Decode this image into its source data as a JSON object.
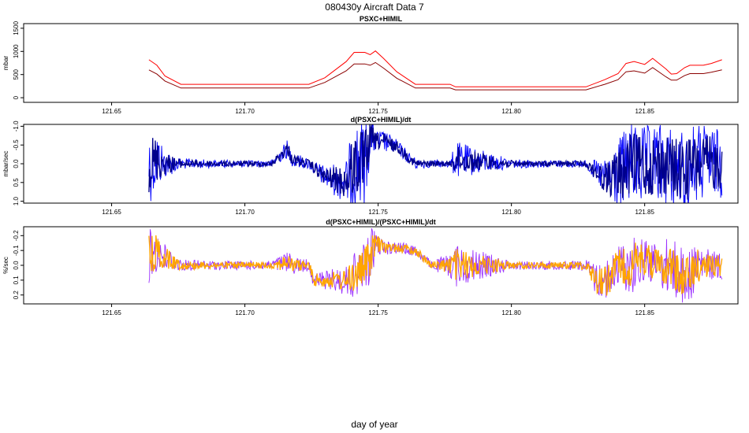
{
  "title": "080430y   Aircraft Data 7",
  "xlabel": "day of year",
  "chart_data": [
    {
      "type": "line",
      "title": "PSXC+HIMIL",
      "ylabel": "mbar",
      "xlim": [
        121.617,
        121.885
      ],
      "ylim": [
        -100,
        1600
      ],
      "xticks": [
        121.65,
        121.7,
        121.75,
        121.8,
        121.85
      ],
      "xtick_labels": [
        "121.65",
        "121.70",
        "121.75",
        "121.80",
        "121.85"
      ],
      "yticks": [
        0,
        500,
        1000,
        1500
      ],
      "ytick_labels": [
        "0",
        "500",
        "1000",
        "1500"
      ],
      "colors": [
        "#ff0000",
        "#8b0000"
      ],
      "series": [
        {
          "x": [
            121.664,
            121.667,
            121.67,
            121.676,
            121.69,
            121.7,
            121.71,
            121.724,
            121.73,
            121.738,
            121.741,
            121.745,
            121.747,
            121.749,
            121.752,
            121.757,
            121.764,
            121.77,
            121.777,
            121.779,
            121.8,
            121.81,
            121.82,
            121.828,
            121.835,
            121.84,
            121.843,
            121.846,
            121.85,
            121.853,
            121.858,
            121.86,
            121.862,
            121.865,
            121.867,
            121.872,
            121.875,
            121.879
          ],
          "y": [
            820,
            700,
            470,
            290,
            290,
            290,
            290,
            290,
            430,
            780,
            980,
            980,
            930,
            1010,
            850,
            560,
            290,
            290,
            290,
            235,
            235,
            235,
            235,
            235,
            390,
            520,
            740,
            780,
            720,
            850,
            620,
            510,
            520,
            650,
            700,
            700,
            740,
            820
          ]
        },
        {
          "x": [
            121.664,
            121.667,
            121.67,
            121.676,
            121.69,
            121.7,
            121.71,
            121.724,
            121.73,
            121.738,
            121.741,
            121.745,
            121.747,
            121.749,
            121.752,
            121.757,
            121.764,
            121.77,
            121.777,
            121.779,
            121.8,
            121.81,
            121.82,
            121.828,
            121.835,
            121.84,
            121.843,
            121.846,
            121.85,
            121.853,
            121.858,
            121.86,
            121.862,
            121.865,
            121.867,
            121.872,
            121.875,
            121.879
          ],
          "y": [
            600,
            510,
            360,
            210,
            210,
            210,
            210,
            210,
            330,
            580,
            730,
            730,
            700,
            760,
            640,
            420,
            210,
            210,
            210,
            170,
            170,
            170,
            170,
            170,
            290,
            390,
            560,
            580,
            530,
            650,
            450,
            380,
            380,
            480,
            520,
            520,
            550,
            600
          ]
        }
      ]
    },
    {
      "type": "line",
      "title": "d(PSXC+HIMIL)/dt",
      "ylabel": "mbar/sec",
      "xlim": [
        121.617,
        121.885
      ],
      "ylim": [
        1.05,
        -1.05
      ],
      "xticks": [
        121.65,
        121.7,
        121.75,
        121.8,
        121.85
      ],
      "xtick_labels": [
        "121.65",
        "121.70",
        "121.75",
        "121.80",
        "121.85"
      ],
      "yticks": [
        -1.0,
        -0.5,
        0.0,
        0.5,
        1.0
      ],
      "ytick_labels": [
        "-1.0",
        "-0.5",
        "0.0",
        "0.5",
        "1.0"
      ],
      "colors": [
        "#0000ff",
        "#00008b"
      ],
      "envelope": {
        "x": [
          121.664,
          121.667,
          121.67,
          121.676,
          121.69,
          121.7,
          121.71,
          121.716,
          121.718,
          121.724,
          121.73,
          121.738,
          121.741,
          121.745,
          121.747,
          121.749,
          121.752,
          121.757,
          121.764,
          121.77,
          121.777,
          121.779,
          121.8,
          121.81,
          121.82,
          121.828,
          121.835,
          121.84,
          121.845,
          121.85,
          121.855,
          121.86,
          121.865,
          121.87,
          121.875,
          121.879
        ],
        "center": [
          0.0,
          -0.1,
          0.0,
          0.0,
          0.0,
          0.0,
          0.0,
          -0.4,
          -0.1,
          0.0,
          0.35,
          0.5,
          0.0,
          0.0,
          -0.7,
          -0.6,
          -0.6,
          -0.45,
          0.0,
          0.0,
          0.0,
          -0.1,
          0.0,
          0.0,
          0.0,
          0.0,
          0.4,
          0.3,
          0.0,
          0.1,
          0.0,
          0.1,
          0.2,
          0.0,
          0.0,
          0.0
        ],
        "amplitude": [
          1.1,
          0.8,
          0.4,
          0.15,
          0.1,
          0.1,
          0.1,
          0.25,
          0.2,
          0.15,
          0.3,
          0.6,
          1.2,
          1.2,
          0.6,
          0.3,
          0.3,
          0.2,
          0.15,
          0.1,
          0.1,
          0.5,
          0.12,
          0.1,
          0.1,
          0.1,
          0.5,
          1.0,
          1.1,
          1.1,
          1.1,
          1.1,
          1.1,
          1.1,
          1.0,
          0.9
        ]
      }
    },
    {
      "type": "line",
      "title": "d(PSXC+HIMIL)/(PSXC+HIMIL)/dt",
      "ylabel": "%/sec",
      "xlim": [
        121.617,
        121.885
      ],
      "ylim": [
        0.26,
        -0.26
      ],
      "xticks": [
        121.65,
        121.7,
        121.75,
        121.8,
        121.85
      ],
      "xtick_labels": [
        "121.65",
        "121.70",
        "121.75",
        "121.80",
        "121.85"
      ],
      "yticks": [
        -0.2,
        -0.1,
        0.0,
        0.1,
        0.2
      ],
      "ytick_labels": [
        "-0.2",
        "-0.1",
        "0.0",
        "0.1",
        "0.2"
      ],
      "colors": [
        "#9b30ff",
        "#ffa500"
      ],
      "envelope": {
        "x": [
          121.664,
          121.667,
          121.67,
          121.676,
          121.69,
          121.7,
          121.71,
          121.716,
          121.718,
          121.724,
          121.726,
          121.73,
          121.738,
          121.741,
          121.745,
          121.747,
          121.749,
          121.752,
          121.757,
          121.764,
          121.77,
          121.777,
          121.779,
          121.8,
          121.81,
          121.82,
          121.828,
          121.832,
          121.836,
          121.84,
          121.845,
          121.85,
          121.855,
          121.86,
          121.865,
          121.87,
          121.875,
          121.879
        ],
        "center": [
          -0.05,
          -0.1,
          -0.05,
          0.0,
          0.0,
          0.0,
          0.0,
          -0.02,
          0.0,
          0.0,
          0.1,
          0.1,
          0.1,
          0.07,
          0.0,
          -0.05,
          -0.15,
          -0.12,
          -0.12,
          -0.1,
          0.0,
          0.0,
          0.0,
          0.0,
          0.0,
          0.0,
          0.0,
          0.1,
          0.1,
          0.0,
          0.0,
          -0.05,
          0.0,
          0.0,
          0.1,
          0.0,
          0.0,
          0.0
        ],
        "amplitude": [
          0.2,
          0.15,
          0.1,
          0.04,
          0.03,
          0.03,
          0.03,
          0.08,
          0.06,
          0.04,
          0.06,
          0.06,
          0.1,
          0.15,
          0.15,
          0.2,
          0.1,
          0.05,
          0.04,
          0.04,
          0.03,
          0.08,
          0.15,
          0.03,
          0.03,
          0.03,
          0.04,
          0.12,
          0.14,
          0.14,
          0.2,
          0.15,
          0.15,
          0.2,
          0.2,
          0.15,
          0.1,
          0.1
        ]
      }
    }
  ]
}
